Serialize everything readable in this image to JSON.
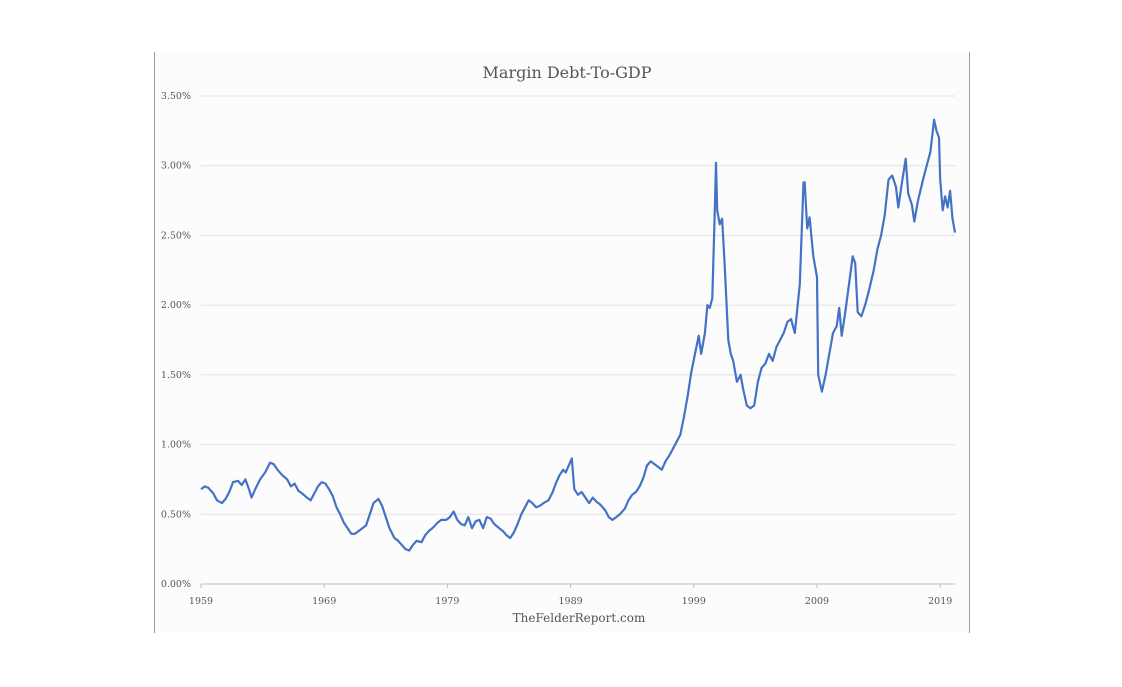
{
  "chart_data": {
    "type": "line",
    "title": "Margin Debt-To-GDP",
    "source": "TheFelderReport.com",
    "xlabel": "",
    "ylabel": "",
    "xlim": [
      1959,
      2020.2
    ],
    "ylim": [
      0,
      0.035
    ],
    "grid": true,
    "legend": "none",
    "x_ticks": [
      "1959",
      "1969",
      "1979",
      "1989",
      "1999",
      "2009",
      "2019"
    ],
    "x_tick_values": [
      1959,
      1969,
      1979,
      1989,
      1999,
      2009,
      2019
    ],
    "y_ticks": [
      "0.00%",
      "0.50%",
      "1.00%",
      "1.50%",
      "2.00%",
      "2.50%",
      "3.00%",
      "3.50%"
    ],
    "y_tick_values": [
      0,
      0.005,
      0.01,
      0.015,
      0.02,
      0.025,
      0.03,
      0.035
    ],
    "line_color": "#4472c4",
    "series": [
      {
        "points": [
          [
            1959.0,
            0.0068
          ],
          [
            1959.3,
            0.007
          ],
          [
            1959.6,
            0.0069
          ],
          [
            1960.0,
            0.0065
          ],
          [
            1960.3,
            0.006
          ],
          [
            1960.7,
            0.0058
          ],
          [
            1961.0,
            0.0061
          ],
          [
            1961.3,
            0.0066
          ],
          [
            1961.6,
            0.0073
          ],
          [
            1962.0,
            0.0074
          ],
          [
            1962.3,
            0.0071
          ],
          [
            1962.6,
            0.0075
          ],
          [
            1962.9,
            0.0068
          ],
          [
            1963.1,
            0.0062
          ],
          [
            1963.4,
            0.0068
          ],
          [
            1963.8,
            0.0075
          ],
          [
            1964.2,
            0.008
          ],
          [
            1964.6,
            0.0087
          ],
          [
            1964.9,
            0.0086
          ],
          [
            1965.2,
            0.0082
          ],
          [
            1965.6,
            0.0078
          ],
          [
            1966.0,
            0.0075
          ],
          [
            1966.3,
            0.007
          ],
          [
            1966.6,
            0.0072
          ],
          [
            1966.9,
            0.0067
          ],
          [
            1967.2,
            0.0065
          ],
          [
            1967.6,
            0.0062
          ],
          [
            1967.9,
            0.006
          ],
          [
            1968.2,
            0.0065
          ],
          [
            1968.5,
            0.007
          ],
          [
            1968.8,
            0.0073
          ],
          [
            1969.1,
            0.0072
          ],
          [
            1969.4,
            0.0068
          ],
          [
            1969.7,
            0.0063
          ],
          [
            1970.0,
            0.0055
          ],
          [
            1970.3,
            0.005
          ],
          [
            1970.6,
            0.0044
          ],
          [
            1970.9,
            0.004
          ],
          [
            1971.2,
            0.0036
          ],
          [
            1971.5,
            0.0036
          ],
          [
            1971.8,
            0.0038
          ],
          [
            1972.1,
            0.004
          ],
          [
            1972.4,
            0.0042
          ],
          [
            1972.7,
            0.005
          ],
          [
            1973.0,
            0.0058
          ],
          [
            1973.4,
            0.0061
          ],
          [
            1973.7,
            0.0056
          ],
          [
            1974.0,
            0.0048
          ],
          [
            1974.3,
            0.004
          ],
          [
            1974.7,
            0.0033
          ],
          [
            1975.0,
            0.0031
          ],
          [
            1975.3,
            0.0028
          ],
          [
            1975.6,
            0.0025
          ],
          [
            1975.9,
            0.0024
          ],
          [
            1976.2,
            0.0028
          ],
          [
            1976.5,
            0.0031
          ],
          [
            1976.9,
            0.003
          ],
          [
            1977.2,
            0.0035
          ],
          [
            1977.5,
            0.0038
          ],
          [
            1977.9,
            0.0041
          ],
          [
            1978.2,
            0.0044
          ],
          [
            1978.5,
            0.0046
          ],
          [
            1978.9,
            0.0046
          ],
          [
            1979.2,
            0.0048
          ],
          [
            1979.5,
            0.0052
          ],
          [
            1979.8,
            0.0046
          ],
          [
            1980.1,
            0.0043
          ],
          [
            1980.4,
            0.0042
          ],
          [
            1980.7,
            0.0048
          ],
          [
            1981.0,
            0.004
          ],
          [
            1981.3,
            0.0045
          ],
          [
            1981.6,
            0.0046
          ],
          [
            1981.9,
            0.004
          ],
          [
            1982.2,
            0.0048
          ],
          [
            1982.5,
            0.0047
          ],
          [
            1982.8,
            0.0043
          ],
          [
            1983.2,
            0.004
          ],
          [
            1983.5,
            0.0038
          ],
          [
            1983.8,
            0.0035
          ],
          [
            1984.1,
            0.0033
          ],
          [
            1984.4,
            0.0037
          ],
          [
            1984.7,
            0.0043
          ],
          [
            1985.0,
            0.005
          ],
          [
            1985.3,
            0.0055
          ],
          [
            1985.6,
            0.006
          ],
          [
            1985.9,
            0.0058
          ],
          [
            1986.2,
            0.0055
          ],
          [
            1986.5,
            0.0056
          ],
          [
            1986.8,
            0.0058
          ],
          [
            1987.2,
            0.006
          ],
          [
            1987.5,
            0.0065
          ],
          [
            1987.8,
            0.0072
          ],
          [
            1988.1,
            0.0078
          ],
          [
            1988.4,
            0.0082
          ],
          [
            1988.6,
            0.008
          ],
          [
            1988.9,
            0.0086
          ],
          [
            1989.1,
            0.009
          ],
          [
            1989.3,
            0.0068
          ],
          [
            1989.6,
            0.0064
          ],
          [
            1989.9,
            0.0066
          ],
          [
            1990.2,
            0.0062
          ],
          [
            1990.5,
            0.0058
          ],
          [
            1990.8,
            0.0062
          ],
          [
            1991.1,
            0.0059
          ],
          [
            1991.4,
            0.0057
          ],
          [
            1991.8,
            0.0053
          ],
          [
            1992.1,
            0.0048
          ],
          [
            1992.4,
            0.0046
          ],
          [
            1992.7,
            0.0048
          ],
          [
            1993.0,
            0.005
          ],
          [
            1993.4,
            0.0054
          ],
          [
            1993.7,
            0.006
          ],
          [
            1994.0,
            0.0064
          ],
          [
            1994.3,
            0.0066
          ],
          [
            1994.6,
            0.007
          ],
          [
            1994.9,
            0.0076
          ],
          [
            1995.2,
            0.0085
          ],
          [
            1995.5,
            0.0088
          ],
          [
            1995.8,
            0.0086
          ],
          [
            1996.1,
            0.0084
          ],
          [
            1996.4,
            0.0082
          ],
          [
            1996.7,
            0.0088
          ],
          [
            1997.0,
            0.0092
          ],
          [
            1997.3,
            0.0097
          ],
          [
            1997.6,
            0.0102
          ],
          [
            1997.9,
            0.0107
          ],
          [
            1998.2,
            0.012
          ],
          [
            1998.5,
            0.0135
          ],
          [
            1998.8,
            0.0152
          ],
          [
            1999.1,
            0.0165
          ],
          [
            1999.4,
            0.0178
          ],
          [
            1999.6,
            0.0165
          ],
          [
            1999.9,
            0.018
          ],
          [
            2000.1,
            0.02
          ],
          [
            2000.3,
            0.0198
          ],
          [
            2000.5,
            0.0205
          ],
          [
            2000.7,
            0.0268
          ],
          [
            2000.8,
            0.0302
          ],
          [
            2000.9,
            0.0268
          ],
          [
            2001.1,
            0.0258
          ],
          [
            2001.3,
            0.0262
          ],
          [
            2001.5,
            0.023
          ],
          [
            2001.8,
            0.0175
          ],
          [
            2002.0,
            0.0165
          ],
          [
            2002.2,
            0.016
          ],
          [
            2002.5,
            0.0145
          ],
          [
            2002.8,
            0.015
          ],
          [
            2003.0,
            0.014
          ],
          [
            2003.3,
            0.0128
          ],
          [
            2003.6,
            0.0126
          ],
          [
            2003.9,
            0.0128
          ],
          [
            2004.2,
            0.0145
          ],
          [
            2004.5,
            0.0155
          ],
          [
            2004.8,
            0.0158
          ],
          [
            2005.1,
            0.0165
          ],
          [
            2005.4,
            0.016
          ],
          [
            2005.7,
            0.017
          ],
          [
            2006.0,
            0.0175
          ],
          [
            2006.3,
            0.018
          ],
          [
            2006.6,
            0.0188
          ],
          [
            2006.9,
            0.019
          ],
          [
            2007.2,
            0.018
          ],
          [
            2007.6,
            0.0215
          ],
          [
            2007.9,
            0.0288
          ],
          [
            2008.0,
            0.0288
          ],
          [
            2008.2,
            0.0255
          ],
          [
            2008.4,
            0.0263
          ],
          [
            2008.7,
            0.0235
          ],
          [
            2008.9,
            0.0225
          ],
          [
            2009.0,
            0.022
          ],
          [
            2009.1,
            0.015
          ],
          [
            2009.4,
            0.0138
          ],
          [
            2009.7,
            0.015
          ],
          [
            2010.0,
            0.0165
          ],
          [
            2010.3,
            0.018
          ],
          [
            2010.6,
            0.0185
          ],
          [
            2010.8,
            0.0198
          ],
          [
            2011.0,
            0.0178
          ],
          [
            2011.3,
            0.0195
          ],
          [
            2011.6,
            0.0215
          ],
          [
            2011.9,
            0.0235
          ],
          [
            2012.1,
            0.023
          ],
          [
            2012.3,
            0.0195
          ],
          [
            2012.6,
            0.0192
          ],
          [
            2012.9,
            0.02
          ],
          [
            2013.2,
            0.021
          ],
          [
            2013.6,
            0.0225
          ],
          [
            2013.9,
            0.024
          ],
          [
            2014.2,
            0.025
          ],
          [
            2014.5,
            0.0265
          ],
          [
            2014.8,
            0.029
          ],
          [
            2015.1,
            0.0293
          ],
          [
            2015.4,
            0.0285
          ],
          [
            2015.6,
            0.027
          ],
          [
            2015.9,
            0.0288
          ],
          [
            2016.2,
            0.0305
          ],
          [
            2016.4,
            0.028
          ],
          [
            2016.7,
            0.0272
          ],
          [
            2016.9,
            0.026
          ],
          [
            2017.2,
            0.0275
          ],
          [
            2017.6,
            0.029
          ],
          [
            2017.9,
            0.03
          ],
          [
            2018.2,
            0.031
          ],
          [
            2018.5,
            0.0333
          ],
          [
            2018.7,
            0.0325
          ],
          [
            2018.9,
            0.032
          ],
          [
            2019.0,
            0.029
          ],
          [
            2019.2,
            0.0268
          ],
          [
            2019.4,
            0.0278
          ],
          [
            2019.6,
            0.027
          ],
          [
            2019.8,
            0.0282
          ],
          [
            2020.0,
            0.0262
          ],
          [
            2020.2,
            0.0252
          ]
        ]
      }
    ]
  }
}
